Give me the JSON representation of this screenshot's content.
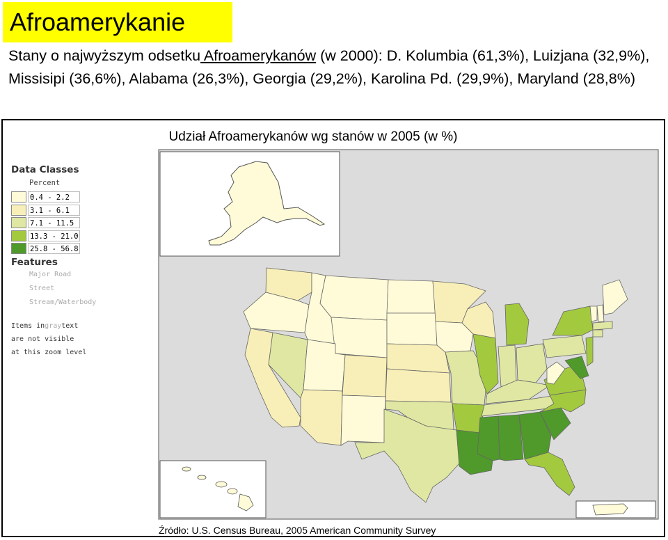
{
  "slide": {
    "title": "Afroamerykanie",
    "subtitle_pre": "Stany o najwyższym odsetku",
    "subtitle_link": " Afroamerykanów",
    "subtitle_post": " (w 2000): D. Kolumbia (61,3%), Luizjana (32,9%), Missisipi (36,6%), Alabama (26,3%), Georgia (29,2%), Karolina Pd. (29,9%), Maryland (28,8%)"
  },
  "map": {
    "title": "Udział Afroamerykanów wg stanów w 2005 (w %)",
    "source": "Źródło: U.S. Census Bureau, 2005 American Community Survey"
  },
  "legend": {
    "heading": "Data Classes",
    "unit": "Percent",
    "classes": [
      {
        "label": "0.4 - 2.2",
        "color": "#fffbd8"
      },
      {
        "label": "3.1 - 6.1",
        "color": "#f8efb8"
      },
      {
        "label": "7.1 - 11.5",
        "color": "#dfe7a3"
      },
      {
        "label": "13.3 - 21.0",
        "color": "#a3c93f"
      },
      {
        "label": "25.8 - 56.8",
        "color": "#4f9a2a"
      }
    ],
    "features_heading": "Features",
    "features": [
      "Major Road",
      "Street",
      "Stream/Waterbody"
    ],
    "note_a": "Items in",
    "note_gray": "gray",
    "note_b": "text",
    "note_line2": "are not visible",
    "note_line3": "at this zoom level"
  },
  "colors": {
    "title_bg": "#ffff00",
    "map_bg": "#dcdcdc",
    "border": "#555555"
  }
}
